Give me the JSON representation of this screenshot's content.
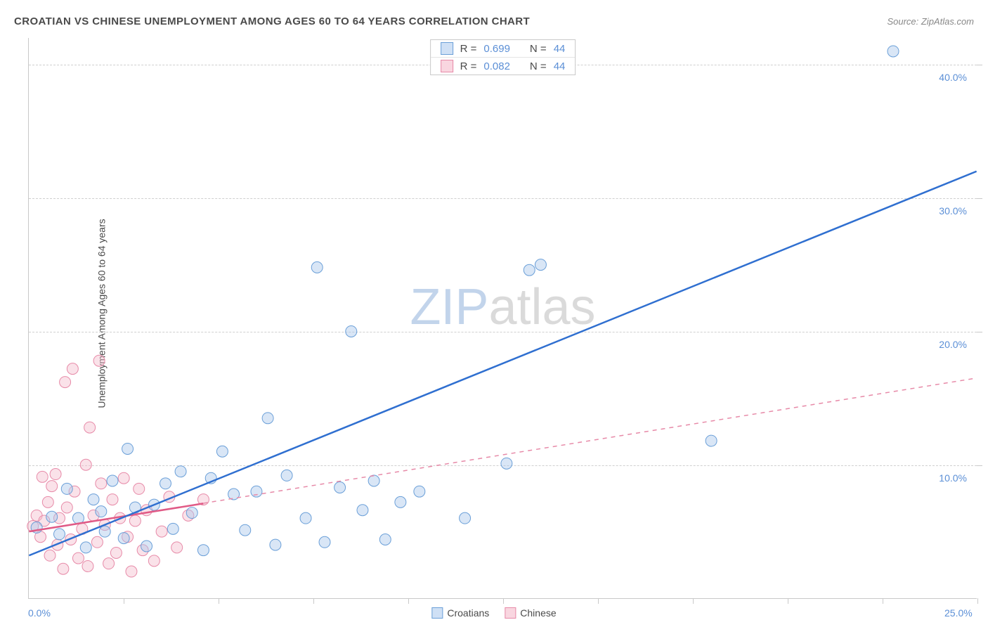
{
  "header": {
    "title": "CROATIAN VS CHINESE UNEMPLOYMENT AMONG AGES 60 TO 64 YEARS CORRELATION CHART",
    "source": "Source: ZipAtlas.com"
  },
  "chart": {
    "type": "scatter",
    "y_axis_label": "Unemployment Among Ages 60 to 64 years",
    "watermark_zip": "ZIP",
    "watermark_rest": "atlas",
    "background_color": "#ffffff",
    "grid_color": "#d0d0d0",
    "axis_color": "#c9c9c9",
    "tick_label_color": "#5b8fd6",
    "xlim": [
      0,
      25
    ],
    "ylim": [
      0,
      42
    ],
    "y_gridlines": [
      10,
      20,
      30,
      40
    ],
    "y_tick_labels": [
      "10.0%",
      "20.0%",
      "30.0%",
      "40.0%"
    ],
    "x_ticks_minor": [
      2.5,
      5,
      7.5,
      10,
      12.5,
      15,
      17.5,
      20,
      22.5,
      25
    ],
    "x_axis_end_labels": {
      "left": "0.0%",
      "right": "25.0%"
    },
    "marker_radius": 8,
    "series": [
      {
        "name": "Croatians",
        "R": "0.699",
        "N": "44",
        "point_fill": "#aac8ec",
        "point_stroke": "#6a9fd8",
        "swatch_fill": "#cfe0f5",
        "swatch_border": "#6a9fd8",
        "trend": {
          "stroke": "#2f6fd0",
          "width": 2.5,
          "dash": "none",
          "x1": 0,
          "y1": 3.2,
          "x2": 25,
          "y2": 32
        },
        "points": [
          [
            0.2,
            5.3
          ],
          [
            0.6,
            6.1
          ],
          [
            0.8,
            4.8
          ],
          [
            1.0,
            8.2
          ],
          [
            1.3,
            6.0
          ],
          [
            1.5,
            3.8
          ],
          [
            1.7,
            7.4
          ],
          [
            2.0,
            5.0
          ],
          [
            2.2,
            8.8
          ],
          [
            2.5,
            4.5
          ],
          [
            2.6,
            11.2
          ],
          [
            2.8,
            6.8
          ],
          [
            3.1,
            3.9
          ],
          [
            3.3,
            7.0
          ],
          [
            3.6,
            8.6
          ],
          [
            3.8,
            5.2
          ],
          [
            4.0,
            9.5
          ],
          [
            4.3,
            6.4
          ],
          [
            4.6,
            3.6
          ],
          [
            4.8,
            9.0
          ],
          [
            5.1,
            11.0
          ],
          [
            5.4,
            7.8
          ],
          [
            5.7,
            5.1
          ],
          [
            6.0,
            8.0
          ],
          [
            6.3,
            13.5
          ],
          [
            6.5,
            4.0
          ],
          [
            6.8,
            9.2
          ],
          [
            7.3,
            6.0
          ],
          [
            7.6,
            24.8
          ],
          [
            7.8,
            4.2
          ],
          [
            8.2,
            8.3
          ],
          [
            8.5,
            20.0
          ],
          [
            8.8,
            6.6
          ],
          [
            9.1,
            8.8
          ],
          [
            9.4,
            4.4
          ],
          [
            9.8,
            7.2
          ],
          [
            10.3,
            8.0
          ],
          [
            11.5,
            6.0
          ],
          [
            12.6,
            10.1
          ],
          [
            13.2,
            24.6
          ],
          [
            13.5,
            25.0
          ],
          [
            18.0,
            11.8
          ],
          [
            22.8,
            41.0
          ],
          [
            1.9,
            6.5
          ]
        ]
      },
      {
        "name": "Chinese",
        "R": "0.082",
        "N": "44",
        "point_fill": "#f5bfcf",
        "point_stroke": "#e78aa8",
        "swatch_fill": "#f9d6e0",
        "swatch_border": "#e78aa8",
        "trend": {
          "stroke": "#e78aa8",
          "width": 1.5,
          "dash": "6,6",
          "x1": 0,
          "y1": 5.0,
          "x2": 25,
          "y2": 16.5
        },
        "trend_solid_segment": {
          "stroke": "#e05a86",
          "width": 2.5,
          "x1": 0,
          "y1": 5.0,
          "x2": 4.6,
          "y2": 7.1
        },
        "points": [
          [
            0.1,
            5.4
          ],
          [
            0.2,
            6.2
          ],
          [
            0.3,
            4.6
          ],
          [
            0.35,
            9.1
          ],
          [
            0.4,
            5.8
          ],
          [
            0.5,
            7.2
          ],
          [
            0.55,
            3.2
          ],
          [
            0.6,
            8.4
          ],
          [
            0.7,
            9.3
          ],
          [
            0.75,
            4.0
          ],
          [
            0.8,
            6.0
          ],
          [
            0.9,
            2.2
          ],
          [
            0.95,
            16.2
          ],
          [
            1.0,
            6.8
          ],
          [
            1.1,
            4.4
          ],
          [
            1.15,
            17.2
          ],
          [
            1.2,
            8.0
          ],
          [
            1.3,
            3.0
          ],
          [
            1.4,
            5.2
          ],
          [
            1.5,
            10.0
          ],
          [
            1.55,
            2.4
          ],
          [
            1.6,
            12.8
          ],
          [
            1.7,
            6.2
          ],
          [
            1.8,
            4.2
          ],
          [
            1.85,
            17.8
          ],
          [
            1.9,
            8.6
          ],
          [
            2.0,
            5.5
          ],
          [
            2.1,
            2.6
          ],
          [
            2.2,
            7.4
          ],
          [
            2.3,
            3.4
          ],
          [
            2.4,
            6.0
          ],
          [
            2.5,
            9.0
          ],
          [
            2.6,
            4.6
          ],
          [
            2.7,
            2.0
          ],
          [
            2.8,
            5.8
          ],
          [
            2.9,
            8.2
          ],
          [
            3.0,
            3.6
          ],
          [
            3.1,
            6.6
          ],
          [
            3.3,
            2.8
          ],
          [
            3.5,
            5.0
          ],
          [
            3.7,
            7.6
          ],
          [
            3.9,
            3.8
          ],
          [
            4.2,
            6.2
          ],
          [
            4.6,
            7.4
          ]
        ]
      }
    ],
    "legend_top": {
      "R_label": "R =",
      "N_label": "N ="
    },
    "legend_bottom": {
      "items": [
        "Croatians",
        "Chinese"
      ]
    }
  }
}
